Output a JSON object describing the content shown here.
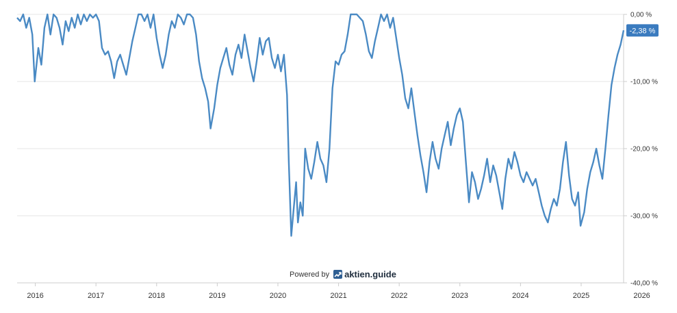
{
  "chart_data": {
    "type": "line",
    "title": "",
    "xlabel": "",
    "ylabel": "",
    "x_tick_labels": [
      "2016",
      "2017",
      "2018",
      "2019",
      "2020",
      "2021",
      "2022",
      "2023",
      "2024",
      "2025",
      "2026"
    ],
    "x_range": [
      2015.7,
      2025.7
    ],
    "y_tick_labels": [
      "0,00 %",
      "-10,00 %",
      "-20,00 %",
      "-30,00 %",
      "-40,00 %"
    ],
    "y_ticks": [
      0,
      -10,
      -20,
      -30,
      -40
    ],
    "ylim": [
      -40,
      0
    ],
    "grid": true,
    "line_color": "#4a8ac4",
    "badge_color": "#3a7bbf",
    "last_value_label": "-2,38 %",
    "series": [
      {
        "points": [
          [
            2015.7,
            -0.5
          ],
          [
            2015.75,
            -1.0
          ],
          [
            2015.8,
            0.0
          ],
          [
            2015.85,
            -2.0
          ],
          [
            2015.9,
            -0.5
          ],
          [
            2015.95,
            -3.0
          ],
          [
            2015.99,
            -10.0
          ],
          [
            2016.05,
            -5.0
          ],
          [
            2016.1,
            -7.5
          ],
          [
            2016.15,
            -2.0
          ],
          [
            2016.2,
            0.0
          ],
          [
            2016.25,
            -3.0
          ],
          [
            2016.3,
            0.0
          ],
          [
            2016.35,
            -0.5
          ],
          [
            2016.4,
            -2.0
          ],
          [
            2016.45,
            -4.5
          ],
          [
            2016.5,
            -1.0
          ],
          [
            2016.55,
            -2.5
          ],
          [
            2016.6,
            -0.5
          ],
          [
            2016.65,
            -2.0
          ],
          [
            2016.7,
            0.0
          ],
          [
            2016.75,
            -1.5
          ],
          [
            2016.8,
            0.0
          ],
          [
            2016.85,
            -1.0
          ],
          [
            2016.9,
            0.0
          ],
          [
            2016.95,
            -0.5
          ],
          [
            2017.0,
            0.0
          ],
          [
            2017.05,
            -1.0
          ],
          [
            2017.1,
            -5.0
          ],
          [
            2017.15,
            -6.0
          ],
          [
            2017.2,
            -5.5
          ],
          [
            2017.25,
            -7.0
          ],
          [
            2017.3,
            -9.5
          ],
          [
            2017.35,
            -7.0
          ],
          [
            2017.4,
            -6.0
          ],
          [
            2017.45,
            -7.5
          ],
          [
            2017.5,
            -9.0
          ],
          [
            2017.55,
            -6.5
          ],
          [
            2017.6,
            -4.0
          ],
          [
            2017.65,
            -2.0
          ],
          [
            2017.7,
            0.0
          ],
          [
            2017.75,
            0.0
          ],
          [
            2017.8,
            -1.0
          ],
          [
            2017.85,
            0.0
          ],
          [
            2017.9,
            -2.0
          ],
          [
            2017.95,
            0.0
          ],
          [
            2018.0,
            -3.5
          ],
          [
            2018.05,
            -6.0
          ],
          [
            2018.1,
            -8.0
          ],
          [
            2018.15,
            -6.0
          ],
          [
            2018.2,
            -3.0
          ],
          [
            2018.25,
            -1.0
          ],
          [
            2018.3,
            -2.0
          ],
          [
            2018.35,
            0.0
          ],
          [
            2018.4,
            -0.5
          ],
          [
            2018.45,
            -1.5
          ],
          [
            2018.5,
            0.0
          ],
          [
            2018.55,
            0.0
          ],
          [
            2018.6,
            -0.5
          ],
          [
            2018.65,
            -3.0
          ],
          [
            2018.7,
            -7.0
          ],
          [
            2018.75,
            -9.5
          ],
          [
            2018.8,
            -11.0
          ],
          [
            2018.85,
            -13.0
          ],
          [
            2018.89,
            -17.0
          ],
          [
            2018.95,
            -14.0
          ],
          [
            2019.0,
            -10.5
          ],
          [
            2019.05,
            -8.0
          ],
          [
            2019.1,
            -6.5
          ],
          [
            2019.15,
            -5.0
          ],
          [
            2019.2,
            -7.5
          ],
          [
            2019.25,
            -9.0
          ],
          [
            2019.3,
            -6.0
          ],
          [
            2019.35,
            -4.5
          ],
          [
            2019.4,
            -6.5
          ],
          [
            2019.45,
            -3.0
          ],
          [
            2019.5,
            -5.5
          ],
          [
            2019.55,
            -8.0
          ],
          [
            2019.6,
            -10.0
          ],
          [
            2019.65,
            -7.0
          ],
          [
            2019.7,
            -3.5
          ],
          [
            2019.75,
            -6.0
          ],
          [
            2019.8,
            -4.0
          ],
          [
            2019.85,
            -3.5
          ],
          [
            2019.9,
            -6.5
          ],
          [
            2019.95,
            -8.0
          ],
          [
            2020.0,
            -6.0
          ],
          [
            2020.05,
            -8.5
          ],
          [
            2020.1,
            -6.0
          ],
          [
            2020.15,
            -12.0
          ],
          [
            2020.18,
            -22.0
          ],
          [
            2020.22,
            -33.0
          ],
          [
            2020.26,
            -29.0
          ],
          [
            2020.3,
            -25.0
          ],
          [
            2020.33,
            -31.0
          ],
          [
            2020.37,
            -28.0
          ],
          [
            2020.41,
            -30.0
          ],
          [
            2020.45,
            -20.0
          ],
          [
            2020.5,
            -23.0
          ],
          [
            2020.55,
            -24.5
          ],
          [
            2020.6,
            -22.0
          ],
          [
            2020.65,
            -19.0
          ],
          [
            2020.7,
            -21.5
          ],
          [
            2020.75,
            -22.5
          ],
          [
            2020.8,
            -25.0
          ],
          [
            2020.85,
            -20.0
          ],
          [
            2020.9,
            -11.0
          ],
          [
            2020.95,
            -7.0
          ],
          [
            2021.0,
            -7.5
          ],
          [
            2021.05,
            -6.0
          ],
          [
            2021.1,
            -5.5
          ],
          [
            2021.15,
            -3.0
          ],
          [
            2021.2,
            0.0
          ],
          [
            2021.25,
            0.0
          ],
          [
            2021.3,
            0.0
          ],
          [
            2021.35,
            -0.5
          ],
          [
            2021.4,
            -1.0
          ],
          [
            2021.45,
            -3.0
          ],
          [
            2021.5,
            -5.5
          ],
          [
            2021.55,
            -6.5
          ],
          [
            2021.6,
            -4.0
          ],
          [
            2021.65,
            -2.0
          ],
          [
            2021.7,
            0.0
          ],
          [
            2021.75,
            -1.0
          ],
          [
            2021.8,
            0.0
          ],
          [
            2021.85,
            -2.0
          ],
          [
            2021.9,
            -0.5
          ],
          [
            2021.95,
            -3.5
          ],
          [
            2022.0,
            -6.5
          ],
          [
            2022.05,
            -9.0
          ],
          [
            2022.1,
            -12.5
          ],
          [
            2022.15,
            -14.0
          ],
          [
            2022.2,
            -11.0
          ],
          [
            2022.25,
            -14.5
          ],
          [
            2022.3,
            -18.0
          ],
          [
            2022.35,
            -21.0
          ],
          [
            2022.4,
            -23.5
          ],
          [
            2022.45,
            -26.5
          ],
          [
            2022.5,
            -22.0
          ],
          [
            2022.55,
            -19.0
          ],
          [
            2022.6,
            -21.5
          ],
          [
            2022.65,
            -23.0
          ],
          [
            2022.7,
            -20.0
          ],
          [
            2022.75,
            -18.0
          ],
          [
            2022.8,
            -16.0
          ],
          [
            2022.85,
            -19.5
          ],
          [
            2022.9,
            -17.0
          ],
          [
            2022.95,
            -15.0
          ],
          [
            2023.0,
            -14.0
          ],
          [
            2023.05,
            -16.0
          ],
          [
            2023.1,
            -22.0
          ],
          [
            2023.15,
            -28.0
          ],
          [
            2023.2,
            -23.5
          ],
          [
            2023.25,
            -25.0
          ],
          [
            2023.3,
            -27.5
          ],
          [
            2023.35,
            -26.0
          ],
          [
            2023.4,
            -24.0
          ],
          [
            2023.45,
            -21.5
          ],
          [
            2023.5,
            -25.0
          ],
          [
            2023.55,
            -22.5
          ],
          [
            2023.6,
            -24.0
          ],
          [
            2023.65,
            -26.5
          ],
          [
            2023.7,
            -29.0
          ],
          [
            2023.75,
            -24.5
          ],
          [
            2023.8,
            -21.5
          ],
          [
            2023.85,
            -23.0
          ],
          [
            2023.9,
            -20.5
          ],
          [
            2023.95,
            -22.0
          ],
          [
            2024.0,
            -24.0
          ],
          [
            2024.05,
            -25.0
          ],
          [
            2024.1,
            -23.5
          ],
          [
            2024.15,
            -24.5
          ],
          [
            2024.2,
            -25.5
          ],
          [
            2024.25,
            -24.5
          ],
          [
            2024.3,
            -26.5
          ],
          [
            2024.35,
            -28.5
          ],
          [
            2024.4,
            -30.0
          ],
          [
            2024.45,
            -31.0
          ],
          [
            2024.5,
            -29.0
          ],
          [
            2024.55,
            -27.5
          ],
          [
            2024.6,
            -28.5
          ],
          [
            2024.65,
            -26.0
          ],
          [
            2024.7,
            -22.0
          ],
          [
            2024.75,
            -19.0
          ],
          [
            2024.8,
            -24.0
          ],
          [
            2024.85,
            -27.5
          ],
          [
            2024.9,
            -28.5
          ],
          [
            2024.95,
            -26.5
          ],
          [
            2024.99,
            -31.5
          ],
          [
            2025.05,
            -29.5
          ],
          [
            2025.1,
            -26.0
          ],
          [
            2025.15,
            -23.5
          ],
          [
            2025.2,
            -22.0
          ],
          [
            2025.25,
            -20.0
          ],
          [
            2025.3,
            -22.5
          ],
          [
            2025.35,
            -24.5
          ],
          [
            2025.4,
            -20.0
          ],
          [
            2025.45,
            -15.0
          ],
          [
            2025.5,
            -10.5
          ],
          [
            2025.55,
            -8.0
          ],
          [
            2025.6,
            -6.0
          ],
          [
            2025.65,
            -4.5
          ],
          [
            2025.7,
            -2.38
          ]
        ]
      }
    ]
  },
  "branding": {
    "powered_by": "Powered by",
    "brand_name": "aktien.guide"
  }
}
